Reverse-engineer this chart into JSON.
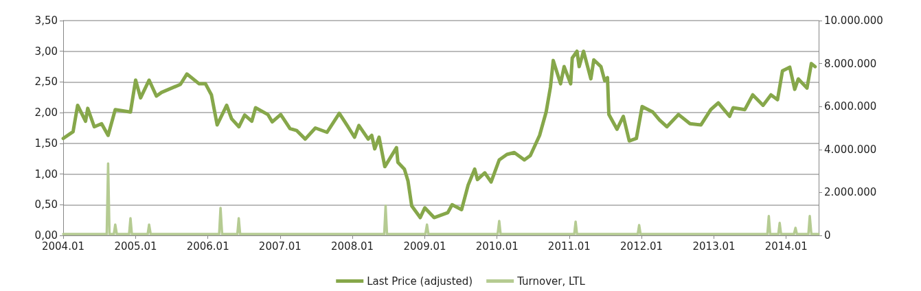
{
  "chart_data": {
    "type": "line",
    "grid": "y",
    "legend": "bottom",
    "marker": "none",
    "line_style": "solid",
    "xlim": [
      "2004-01-01",
      "2014-06-14"
    ],
    "xticks": [
      {
        "value": "2004-01",
        "label": "2004.01"
      },
      {
        "value": "2005-01",
        "label": "2005.01"
      },
      {
        "value": "2006-01",
        "label": "2006.01"
      },
      {
        "value": "2007-01",
        "label": "2007.01"
      },
      {
        "value": "2008-01",
        "label": "2008.01"
      },
      {
        "value": "2009-01",
        "label": "2009.01"
      },
      {
        "value": "2010-01",
        "label": "2010.01"
      },
      {
        "value": "2011-01",
        "label": "2011.01"
      },
      {
        "value": "2012-01",
        "label": "2012.01"
      },
      {
        "value": "2013-01",
        "label": "2013.01"
      },
      {
        "value": "2014-01",
        "label": "2014.01"
      }
    ],
    "ylim": [
      0,
      3.5
    ],
    "yticks": [
      {
        "value": 0,
        "label": "0,00"
      },
      {
        "value": 0.5,
        "label": "0,50"
      },
      {
        "value": 1,
        "label": "1,00"
      },
      {
        "value": 1.5,
        "label": "1,50"
      },
      {
        "value": 2,
        "label": "2,00"
      },
      {
        "value": 2.5,
        "label": "2,50"
      },
      {
        "value": 3,
        "label": "3,00"
      },
      {
        "value": 3.5,
        "label": "3,50"
      }
    ],
    "y2lim": [
      0,
      10000000
    ],
    "y2ticks": [
      0,
      {
        "value": 2000000,
        "label": "2.000.000"
      },
      {
        "value": 4000000,
        "label": "4.000.000"
      },
      {
        "value": 6000000,
        "label": "6.000.000"
      },
      {
        "value": 8000000,
        "label": "8.000.000"
      },
      {
        "value": 10000000,
        "label": "10.000.000"
      }
    ],
    "series": [
      {
        "name": "Last Price (adjusted)",
        "color": "#86a74a",
        "x": [
          "2004-01-01",
          "2004-02-20",
          "2004-03-14",
          "2004-04-23",
          "2004-05-04",
          "2004-06-06",
          "2004-07-13",
          "2004-08-15",
          "2004-09-20",
          "2004-12-06",
          "2005-01-01",
          "2005-01-26",
          "2005-03-10",
          "2005-04-16",
          "2005-05-12",
          "2005-08-15",
          "2005-09-17",
          "2005-11-18",
          "2005-12-20",
          "2006-01-19",
          "2006-02-17",
          "2006-04-06",
          "2006-05-01",
          "2006-06-07",
          "2006-07-06",
          "2006-08-11",
          "2006-08-30",
          "2006-10-31",
          "2006-11-22",
          "2007-01-04",
          "2007-02-20",
          "2007-03-25",
          "2007-05-08",
          "2007-06-28",
          "2007-08-26",
          "2007-10-27",
          "2007-12-06",
          "2008-01-12",
          "2008-02-03",
          "2008-03-21",
          "2008-04-08",
          "2008-04-23",
          "2008-05-15",
          "2008-06-13",
          "2008-08-11",
          "2008-08-18",
          "2008-09-20",
          "2008-10-08",
          "2008-10-27",
          "2008-12-09",
          "2009-01-01",
          "2009-02-17",
          "2009-04-27",
          "2009-05-19",
          "2009-07-06",
          "2009-08-08",
          "2009-09-10",
          "2009-09-24",
          "2009-10-31",
          "2009-12-02",
          "2010-01-12",
          "2010-02-20",
          "2010-03-29",
          "2010-05-19",
          "2010-06-18",
          "2010-08-04",
          "2010-09-06",
          "2010-09-28",
          "2010-10-12",
          "2010-11-18",
          "2010-12-06",
          "2011-01-08",
          "2011-01-16",
          "2011-02-09",
          "2011-02-20",
          "2011-03-14",
          "2011-04-20",
          "2011-05-05",
          "2011-06-10",
          "2011-06-29",
          "2011-07-13",
          "2011-07-20",
          "2011-08-30",
          "2011-10-01",
          "2011-10-31",
          "2011-12-06",
          "2012-01-04",
          "2012-02-27",
          "2012-04-01",
          "2012-05-08",
          "2012-07-06",
          "2012-09-02",
          "2012-10-27",
          "2012-12-16",
          "2013-01-23",
          "2013-03-21",
          "2013-04-08",
          "2013-06-06",
          "2013-07-16",
          "2013-09-06",
          "2013-10-16",
          "2013-11-18",
          "2013-12-13",
          "2014-01-19",
          "2014-02-13",
          "2014-03-03",
          "2014-04-16",
          "2014-05-08",
          "2014-05-27"
        ],
        "values": [
          1.58,
          1.69,
          2.12,
          1.86,
          2.07,
          1.77,
          1.82,
          1.63,
          2.05,
          2.01,
          2.53,
          2.24,
          2.53,
          2.27,
          2.33,
          2.46,
          2.63,
          2.47,
          2.47,
          2.29,
          1.8,
          2.12,
          1.9,
          1.77,
          1.96,
          1.86,
          2.08,
          1.97,
          1.85,
          1.97,
          1.74,
          1.71,
          1.57,
          1.75,
          1.68,
          1.99,
          1.79,
          1.6,
          1.79,
          1.57,
          1.63,
          1.41,
          1.6,
          1.12,
          1.43,
          1.19,
          1.08,
          0.89,
          0.48,
          0.29,
          0.45,
          0.29,
          0.37,
          0.5,
          0.42,
          0.82,
          1.08,
          0.91,
          1.02,
          0.87,
          1.23,
          1.32,
          1.35,
          1.23,
          1.3,
          1.63,
          2.01,
          2.42,
          2.85,
          2.47,
          2.75,
          2.47,
          2.89,
          3,
          2.75,
          3,
          2.55,
          2.86,
          2.75,
          2.52,
          2.57,
          1.97,
          1.73,
          1.94,
          1.54,
          1.58,
          2.1,
          2.01,
          1.88,
          1.77,
          1.97,
          1.82,
          1.8,
          2.05,
          2.16,
          1.94,
          2.08,
          2.05,
          2.29,
          2.12,
          2.29,
          2.21,
          2.68,
          2.74,
          2.38,
          2.55,
          2.4,
          2.8,
          2.75
        ]
      },
      {
        "name": "Turnover, LTL",
        "color": "#b5cb92",
        "axis": "y2",
        "x": [
          "2004-01-01",
          "2004-08-08",
          "2004-08-15",
          "2004-08-22",
          "2004-09-13",
          "2004-09-20",
          "2004-09-28",
          "2004-11-29",
          "2004-12-06",
          "2004-12-13",
          "2005-03-03",
          "2005-03-10",
          "2005-03-18",
          "2006-02-27",
          "2006-03-06",
          "2006-03-14",
          "2006-05-30",
          "2006-06-06",
          "2006-06-13",
          "2008-06-10",
          "2008-06-17",
          "2008-06-24",
          "2009-01-04",
          "2009-01-12",
          "2009-01-19",
          "2010-01-04",
          "2010-01-12",
          "2010-01-19",
          "2011-01-26",
          "2011-02-02",
          "2011-02-09",
          "2011-12-13",
          "2011-12-20",
          "2011-12-27",
          "2013-09-28",
          "2013-10-05",
          "2013-10-12",
          "2013-11-22",
          "2013-11-29",
          "2013-12-06",
          "2014-02-09",
          "2014-02-17",
          "2014-02-24",
          "2014-04-23",
          "2014-04-30",
          "2014-05-08",
          "2014-06-14"
        ],
        "values": [
          60000,
          60000,
          3350000,
          60000,
          60000,
          500000,
          60000,
          60000,
          800000,
          60000,
          60000,
          500000,
          60000,
          60000,
          1280000,
          60000,
          60000,
          800000,
          60000,
          60000,
          1380000,
          60000,
          60000,
          500000,
          60000,
          60000,
          670000,
          60000,
          60000,
          640000,
          60000,
          60000,
          480000,
          60000,
          60000,
          900000,
          60000,
          60000,
          580000,
          60000,
          60000,
          350000,
          60000,
          60000,
          900000,
          60000,
          60000
        ]
      }
    ]
  }
}
